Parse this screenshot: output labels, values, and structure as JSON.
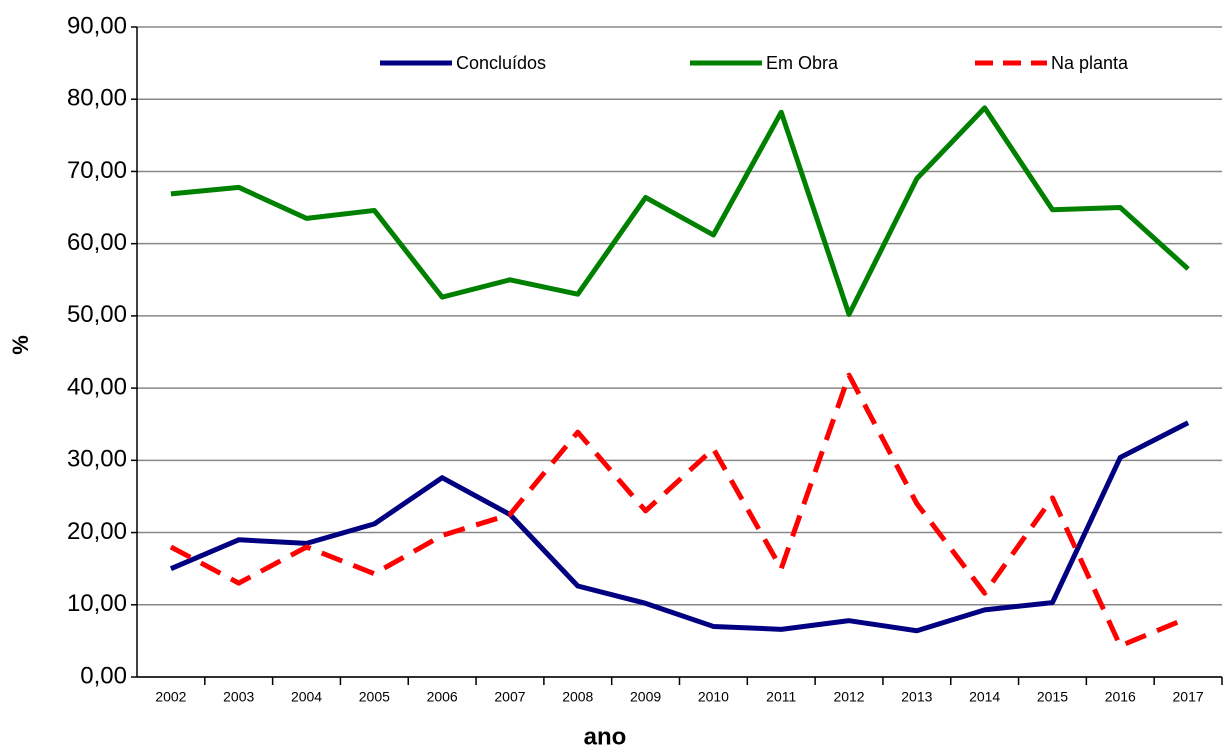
{
  "chart_data": {
    "type": "line",
    "x_label": "ano",
    "y_label": "%",
    "categories": [
      "2002",
      "2003",
      "2004",
      "2005",
      "2006",
      "2007",
      "2008",
      "2009",
      "2010",
      "2011",
      "2012",
      "2013",
      "2014",
      "2015",
      "2016",
      "2017"
    ],
    "series": [
      {
        "name": "Concluídos",
        "color": "#000080",
        "dash": false,
        "values": [
          15.0,
          19.0,
          18.5,
          21.2,
          27.6,
          22.5,
          12.6,
          10.2,
          7.0,
          6.6,
          7.8,
          6.4,
          9.3,
          10.3,
          30.4,
          35.2
        ]
      },
      {
        "name": "Em Obra",
        "color": "#008000",
        "dash": false,
        "values": [
          66.9,
          67.8,
          63.5,
          64.6,
          52.6,
          55.0,
          53.0,
          66.4,
          61.2,
          78.2,
          50.2,
          69.0,
          78.8,
          64.7,
          65.0,
          56.5
        ]
      },
      {
        "name": "Na planta",
        "color": "#ff0000",
        "dash": true,
        "values": [
          18.0,
          13.0,
          18.0,
          14.3,
          19.6,
          22.5,
          33.9,
          23.0,
          31.6,
          15.0,
          41.8,
          24.0,
          11.6,
          24.8,
          4.3,
          8.2
        ]
      }
    ],
    "ylim": [
      0,
      90
    ],
    "yticks": [
      {
        "value": 0,
        "label": "0,00"
      },
      {
        "value": 10,
        "label": "10,00"
      },
      {
        "value": 20,
        "label": "20,00"
      },
      {
        "value": 30,
        "label": "30,00"
      },
      {
        "value": 40,
        "label": "40,00"
      },
      {
        "value": 50,
        "label": "50,00"
      },
      {
        "value": 60,
        "label": "60,00"
      },
      {
        "value": 70,
        "label": "70,00"
      },
      {
        "value": 80,
        "label": "80,00"
      },
      {
        "value": 90,
        "label": "90,00"
      }
    ],
    "grid": true,
    "legend": "top"
  }
}
